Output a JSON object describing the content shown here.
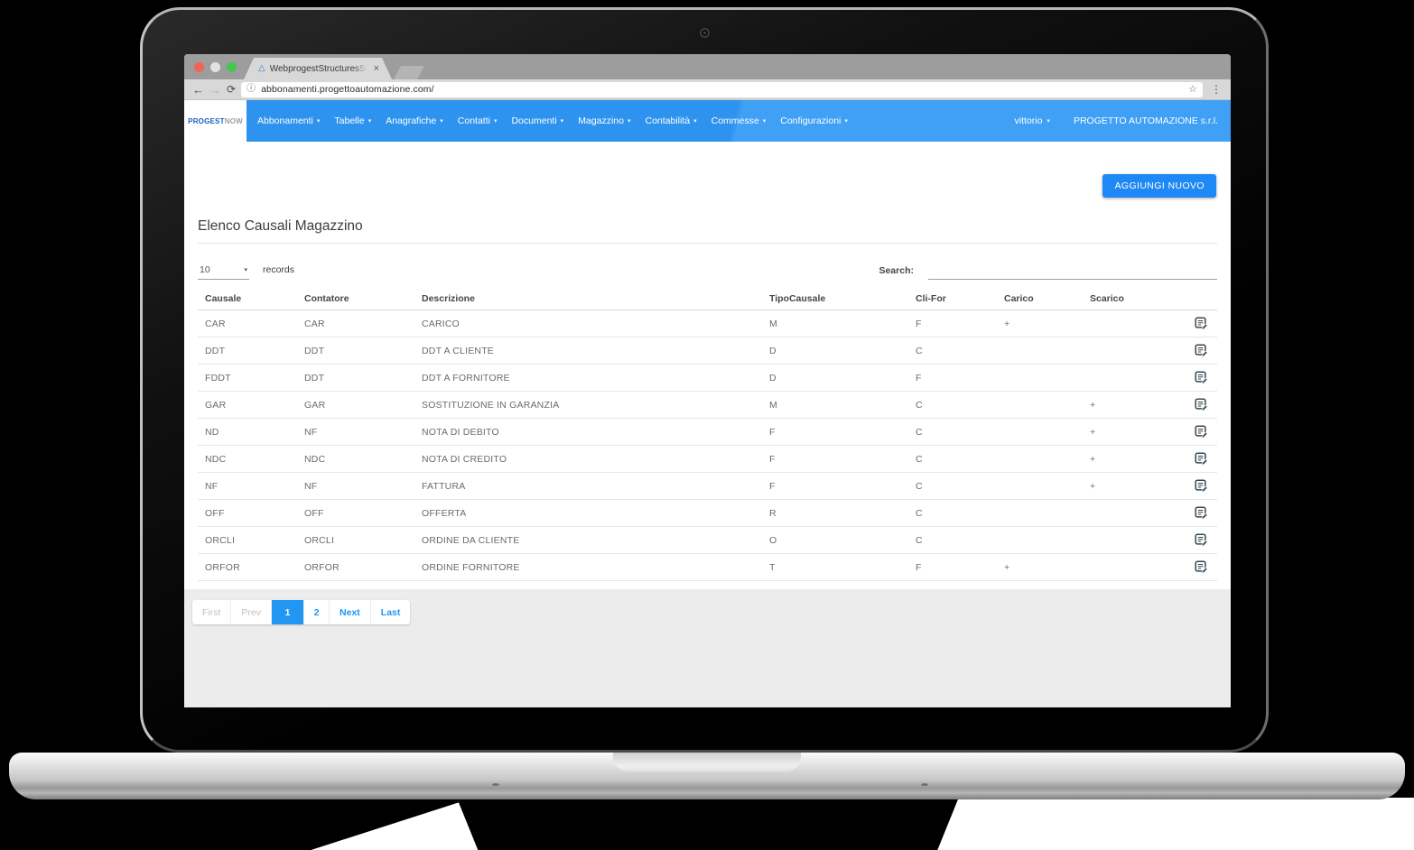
{
  "colors": {
    "accent": "#2196f3",
    "nav_blue": "#2d93ef",
    "nav_blue_light": "#3fa0f5",
    "add_button_blue": "#1e88f5",
    "footer_gray": "#ececec"
  },
  "icons": {
    "favicon": "△",
    "close": "×",
    "back": "←",
    "forward": "→",
    "refresh": "⟳",
    "info": "ⓘ",
    "star": "☆",
    "menu": "⋮",
    "caret": "▾"
  },
  "browser": {
    "tab_title": "WebprogestStructuresStructu",
    "url": "abbonamenti.progettoautomazione.com/"
  },
  "navbar": {
    "logo_primary": "PROGEST",
    "logo_secondary": "NOW",
    "items": [
      "Abbonamenti",
      "Tabelle",
      "Anagrafiche",
      "Contatti",
      "Documenti",
      "Magazzino",
      "Contabilità",
      "Commesse",
      "Configurazioni"
    ],
    "user": "vittorio",
    "company": "PROGETTO AUTOMAZIONE s.r.l."
  },
  "page": {
    "add_button": "AGGIUNGI NUOVO",
    "title": "Elenco Causali Magazzino",
    "records_value": "10",
    "records_label": "records",
    "search_label": "Search:"
  },
  "table": {
    "headers": [
      "Causale",
      "Contatore",
      "Descrizione",
      "TipoCausale",
      "Cli-For",
      "Carico",
      "Scarico"
    ],
    "rows": [
      [
        "CAR",
        "CAR",
        "CARICO",
        "M",
        "F",
        "+",
        ""
      ],
      [
        "DDT",
        "DDT",
        "DDT A CLIENTE",
        "D",
        "C",
        "",
        ""
      ],
      [
        "FDDT",
        "DDT",
        "DDT A FORNITORE",
        "D",
        "F",
        "",
        ""
      ],
      [
        "GAR",
        "GAR",
        "SOSTITUZIONE IN GARANZIA",
        "M",
        "C",
        "",
        "+"
      ],
      [
        "ND",
        "NF",
        "NOTA DI DEBITO",
        "F",
        "C",
        "",
        "+"
      ],
      [
        "NDC",
        "NDC",
        "NOTA DI CREDITO",
        "F",
        "C",
        "",
        "+"
      ],
      [
        "NF",
        "NF",
        "FATTURA",
        "F",
        "C",
        "",
        "+"
      ],
      [
        "OFF",
        "OFF",
        "OFFERTA",
        "R",
        "C",
        "",
        ""
      ],
      [
        "ORCLI",
        "ORCLI",
        "ORDINE DA CLIENTE",
        "O",
        "C",
        "",
        ""
      ],
      [
        "ORFOR",
        "ORFOR",
        "ORDINE FORNITORE",
        "T",
        "F",
        "+",
        ""
      ]
    ]
  },
  "pagination": {
    "buttons": [
      {
        "label": "First",
        "state": "disabled"
      },
      {
        "label": "Prev",
        "state": "disabled"
      },
      {
        "label": "1",
        "state": "active"
      },
      {
        "label": "2",
        "state": "link num"
      },
      {
        "label": "Next",
        "state": "link"
      },
      {
        "label": "Last",
        "state": "link"
      }
    ]
  }
}
